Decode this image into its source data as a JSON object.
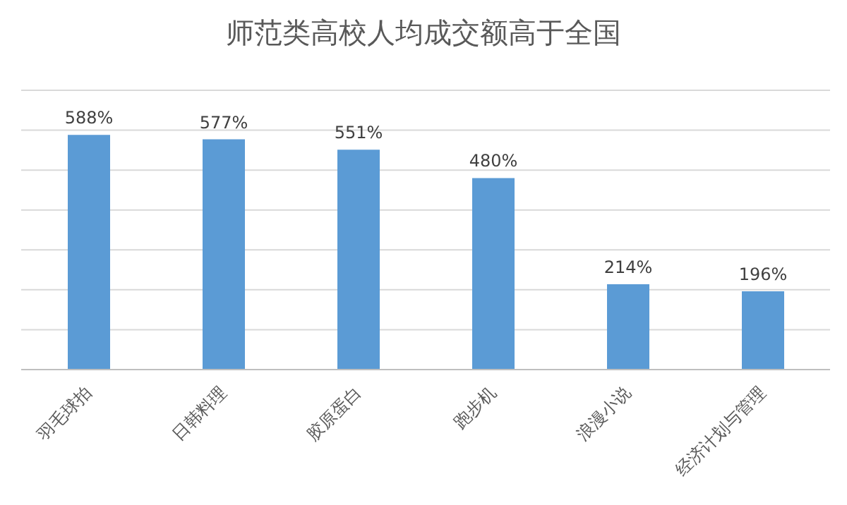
{
  "chart_data": {
    "type": "bar",
    "title": "师范类高校人均成交额高于全国",
    "categories": [
      "羽毛球拍",
      "日韩料理",
      "胶原蛋白",
      "跑步机",
      "浪漫小说",
      "经济计划与管理"
    ],
    "values": [
      588,
      577,
      551,
      480,
      214,
      196
    ],
    "value_labels": [
      "588%",
      "577%",
      "551%",
      "480%",
      "214%",
      "196%"
    ],
    "color": "#5b9bd5",
    "ylim": [
      0,
      700
    ],
    "tick_labels": "x",
    "grid": "y",
    "legend": false
  }
}
